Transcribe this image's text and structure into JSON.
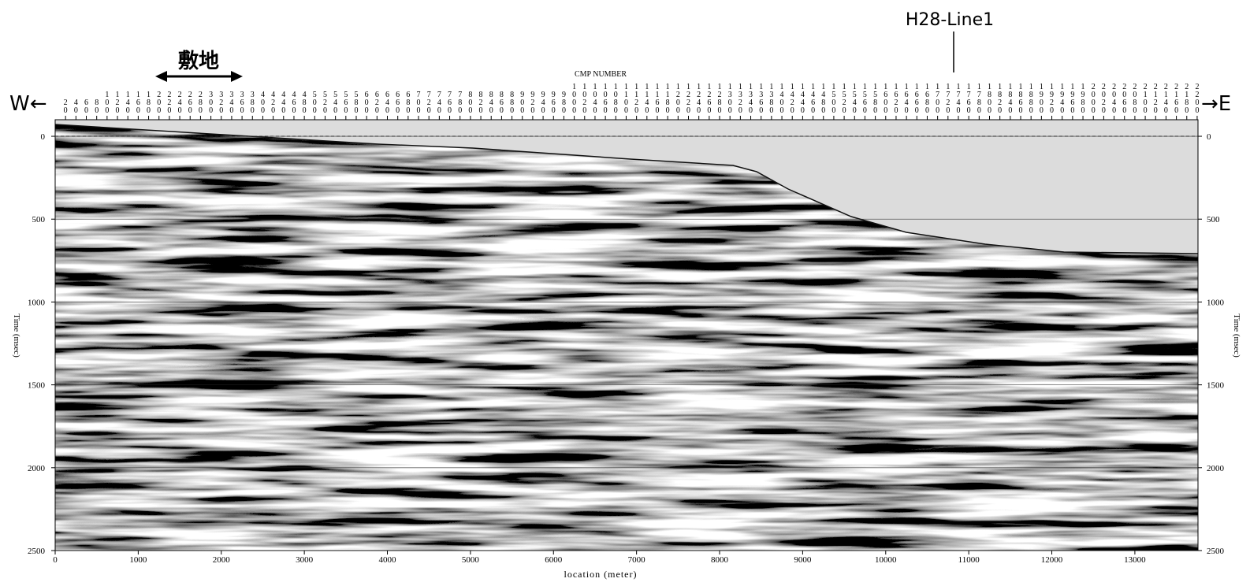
{
  "chart_data": {
    "type": "seismic",
    "title": "H28-Line1",
    "site_label": "敷地",
    "west_label": "W←",
    "east_label": "→E",
    "x2label": "CMP NUMBER",
    "xlabel": "location (meter)",
    "ylabel": "Time (msec)",
    "y2label": "Time (msec)",
    "xlim": [
      0,
      13760
    ],
    "xticks": [
      0,
      1000,
      2000,
      3000,
      4000,
      5000,
      6000,
      7000,
      8000,
      9000,
      10000,
      11000,
      12000,
      13000
    ],
    "x2lim": [
      0,
      2201.6
    ],
    "x2ticks": [
      20,
      40,
      60,
      80,
      100,
      120,
      140,
      160,
      180,
      200,
      220,
      240,
      260,
      280,
      300,
      320,
      340,
      360,
      380,
      400,
      420,
      440,
      460,
      480,
      500,
      520,
      540,
      560,
      580,
      600,
      620,
      640,
      660,
      680,
      700,
      720,
      740,
      760,
      780,
      800,
      820,
      840,
      860,
      880,
      900,
      920,
      940,
      960,
      980,
      1000,
      1020,
      1040,
      1060,
      1080,
      1100,
      1120,
      1140,
      1160,
      1180,
      1200,
      1220,
      1240,
      1260,
      1280,
      1300,
      1320,
      1340,
      1360,
      1380,
      1400,
      1420,
      1440,
      1460,
      1480,
      1500,
      1520,
      1540,
      1560,
      1580,
      1600,
      1620,
      1640,
      1660,
      1680,
      1700,
      1720,
      1740,
      1760,
      1780,
      1800,
      1820,
      1840,
      1860,
      1880,
      1900,
      1920,
      1940,
      1960,
      1980,
      2000,
      2020,
      2040,
      2060,
      2080,
      2100,
      2120,
      2140,
      2160,
      2180,
      2200
    ],
    "ylim": [
      -100,
      2500
    ],
    "yticks": [
      0,
      500,
      1000,
      1500,
      2000,
      2500
    ],
    "grid": true
  }
}
